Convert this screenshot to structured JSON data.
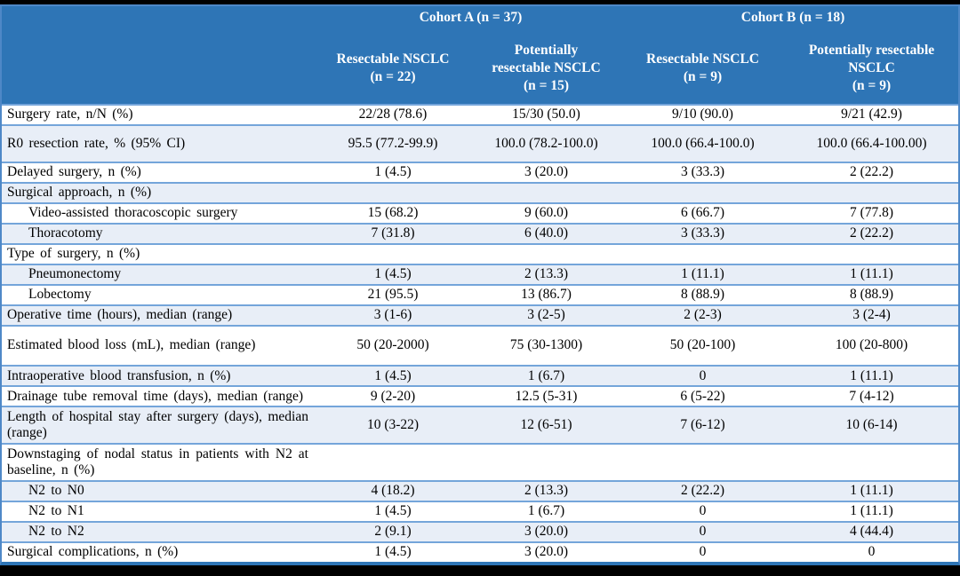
{
  "colors": {
    "header_bg": "#2E75B6",
    "header_text": "#FFFFFF",
    "row_shade": "#E8EEF7",
    "row_border": "#74A5DA",
    "outer_border": "#4E88C7",
    "bottom_border": "#2E75B6",
    "body_text": "#000000",
    "frame_bar": "#000000"
  },
  "table": {
    "header": {
      "cohorts": [
        {
          "label": "Cohort A (n = 37)"
        },
        {
          "label": "Cohort B (n = 18)"
        }
      ],
      "columns": [
        "Resectable NSCLC\n(n = 22)",
        "Potentially\nresectable NSCLC\n(n = 15)",
        "Resectable NSCLC\n(n = 9)",
        "Potentially resectable\nNSCLC\n(n = 9)"
      ]
    },
    "rows": [
      {
        "label": "Surgery rate, n/N (%)",
        "values": [
          "22/28 (78.6)",
          "15/30 (50.0)",
          "9/10 (90.0)",
          "9/21 (42.9)"
        ],
        "shaded": false,
        "indent": false,
        "section": false,
        "size": "normal"
      },
      {
        "label": "R0 resection rate, % (95% CI)",
        "values": [
          "95.5 (77.2-99.9)",
          "100.0 (78.2-100.0)",
          "100.0 (66.4-100.0)",
          "100.0 (66.4-100.00)"
        ],
        "shaded": true,
        "indent": false,
        "section": false,
        "size": "tall"
      },
      {
        "label": "Delayed surgery, n (%)",
        "values": [
          "1 (4.5)",
          "3 (20.0)",
          "3 (33.3)",
          "2 (22.2)"
        ],
        "shaded": false,
        "indent": false,
        "section": false,
        "size": "normal"
      },
      {
        "label": "Surgical approach, n (%)",
        "values": [
          "",
          "",
          "",
          ""
        ],
        "shaded": true,
        "indent": false,
        "section": true,
        "size": "normal"
      },
      {
        "label": "Video-assisted thoracoscopic surgery",
        "values": [
          "15 (68.2)",
          "9 (60.0)",
          "6 (66.7)",
          "7 (77.8)"
        ],
        "shaded": false,
        "indent": true,
        "section": false,
        "size": "normal"
      },
      {
        "label": "Thoracotomy",
        "values": [
          "7 (31.8)",
          "6 (40.0)",
          "3 (33.3)",
          "2 (22.2)"
        ],
        "shaded": true,
        "indent": true,
        "section": false,
        "size": "normal"
      },
      {
        "label": "Type of surgery, n (%)",
        "values": [
          "",
          "",
          "",
          ""
        ],
        "shaded": false,
        "indent": false,
        "section": true,
        "size": "normal"
      },
      {
        "label": "Pneumonectomy",
        "values": [
          "1 (4.5)",
          "2 (13.3)",
          "1 (11.1)",
          "1 (11.1)"
        ],
        "shaded": true,
        "indent": true,
        "section": false,
        "size": "normal"
      },
      {
        "label": "Lobectomy",
        "values": [
          "21 (95.5)",
          "13 (86.7)",
          "8 (88.9)",
          "8 (88.9)"
        ],
        "shaded": false,
        "indent": true,
        "section": false,
        "size": "normal"
      },
      {
        "label": "Operative time (hours), median (range)",
        "values": [
          "3 (1-6)",
          "3 (2-5)",
          "2 (2-3)",
          "3 (2-4)"
        ],
        "shaded": true,
        "indent": false,
        "section": false,
        "size": "normal"
      },
      {
        "label": "Estimated blood loss (mL), median (range)",
        "values": [
          "50 (20-2000)",
          "75 (30-1300)",
          "50 (20-100)",
          "100 (20-800)"
        ],
        "shaded": false,
        "indent": false,
        "section": false,
        "size": "taller"
      },
      {
        "label": "Intraoperative blood transfusion, n (%)",
        "values": [
          "1 (4.5)",
          "1 (6.7)",
          "0",
          "1 (11.1)"
        ],
        "shaded": true,
        "indent": false,
        "section": false,
        "size": "normal"
      },
      {
        "label": "Drainage tube removal time (days), median (range)",
        "values": [
          "9 (2-20)",
          "12.5 (5-31)",
          "6 (5-22)",
          "7 (4-12)"
        ],
        "shaded": false,
        "indent": false,
        "section": false,
        "size": "normal"
      },
      {
        "label": "Length of hospital stay after surgery (days), median (range)",
        "values": [
          "10 (3-22)",
          "12 (6-51)",
          "7 (6-12)",
          "10 (6-14)"
        ],
        "shaded": true,
        "indent": false,
        "section": false,
        "size": "normal"
      },
      {
        "label": "Downstaging of nodal status in patients with N2 at baseline, n (%)",
        "values": [
          "",
          "",
          "",
          ""
        ],
        "shaded": false,
        "indent": false,
        "section": true,
        "size": "normal"
      },
      {
        "label": "N2 to N0",
        "values": [
          "4 (18.2)",
          "2 (13.3)",
          "2 (22.2)",
          "1 (11.1)"
        ],
        "shaded": true,
        "indent": true,
        "section": false,
        "size": "normal"
      },
      {
        "label": "N2 to N1",
        "values": [
          "1 (4.5)",
          "1 (6.7)",
          "0",
          "1 (11.1)"
        ],
        "shaded": false,
        "indent": true,
        "section": false,
        "size": "normal"
      },
      {
        "label": "N2 to N2",
        "values": [
          "2 (9.1)",
          "3 (20.0)",
          "0",
          "4 (44.4)"
        ],
        "shaded": true,
        "indent": true,
        "section": false,
        "size": "normal"
      },
      {
        "label": "Surgical complications, n (%)",
        "values": [
          "1 (4.5)",
          "3 (20.0)",
          "0",
          "0"
        ],
        "shaded": false,
        "indent": false,
        "section": false,
        "size": "normal"
      }
    ]
  }
}
